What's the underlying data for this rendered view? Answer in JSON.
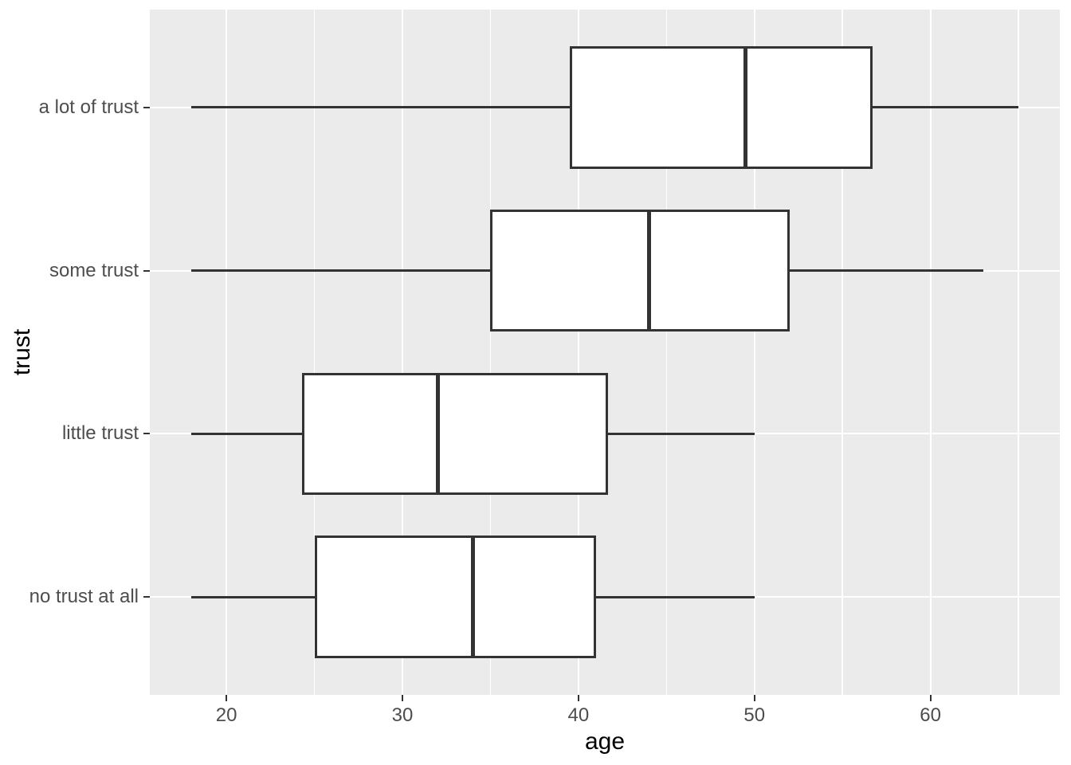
{
  "chart_data": {
    "type": "boxplot",
    "orientation": "horizontal",
    "title": "",
    "xlabel": "age",
    "ylabel": "trust",
    "xlim": [
      15.65,
      67.35
    ],
    "x_major_ticks": [
      20,
      30,
      40,
      50,
      60
    ],
    "x_minor_gridlines": [
      25,
      35,
      45,
      55,
      65
    ],
    "grid": "major-and-minor-white-on-grey",
    "legend": "none",
    "categories_top_to_bottom": [
      "a lot of trust",
      "some trust",
      "little trust",
      "no trust at all"
    ],
    "series": [
      {
        "category": "a lot of trust",
        "whisker_min": 18,
        "q1": 39.5,
        "median": 49.5,
        "q3": 56.7,
        "whisker_max": 65
      },
      {
        "category": "some trust",
        "whisker_min": 18,
        "q1": 35,
        "median": 44,
        "q3": 52,
        "whisker_max": 63
      },
      {
        "category": "little trust",
        "whisker_min": 18,
        "q1": 24.3,
        "median": 32,
        "q3": 41.7,
        "whisker_max": 50
      },
      {
        "category": "no trust at all",
        "whisker_min": 18,
        "q1": 25,
        "median": 34,
        "q3": 41,
        "whisker_max": 50
      }
    ],
    "colors": {
      "panel_bg": "#EBEBEB",
      "grid": "#FFFFFF",
      "box_fill": "#FFFFFF",
      "box_stroke": "#333333",
      "tick_label": "#4D4D4D",
      "axis_title": "#000000",
      "figure_bg": "#FFFFFF"
    }
  }
}
